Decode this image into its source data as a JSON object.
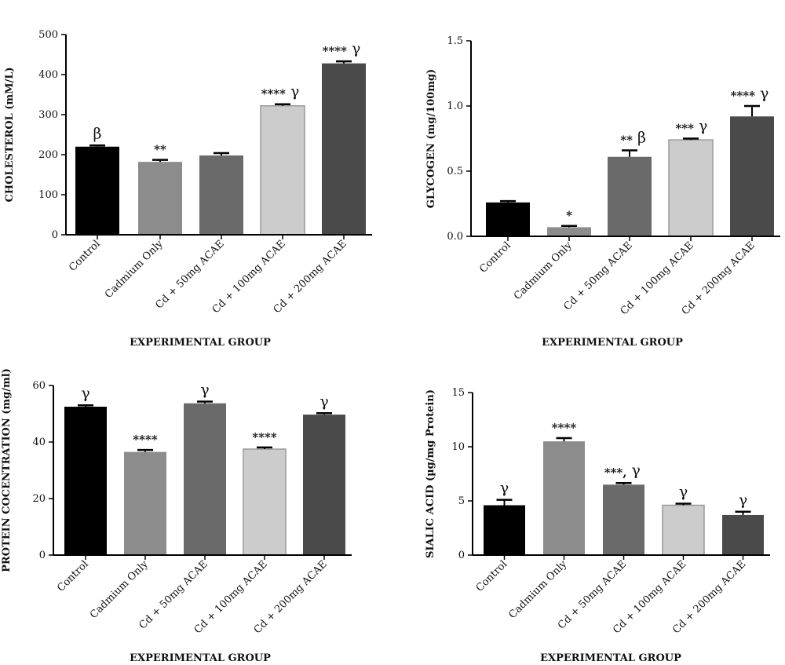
{
  "chart_data": [
    {
      "type": "bar",
      "ylabel": "CHOLESTEROL (mM/L)",
      "xlabel": "EXPERIMENTAL GROUP",
      "categories": [
        "Control",
        "Cadmium Only",
        "Cd + 50mg ACAE",
        "Cd + 100mg ACAE",
        "Cd + 200mg ACAE"
      ],
      "values": [
        220,
        182,
        198,
        322,
        428
      ],
      "errors": [
        3,
        5,
        6,
        4,
        5
      ],
      "ylim": [
        0,
        500
      ],
      "yticks": [
        "0",
        "100",
        "200",
        "300",
        "400",
        "500"
      ],
      "annotations": [
        {
          "stars": "",
          "greek": "β"
        },
        {
          "stars": "**",
          "greek": ""
        },
        {
          "stars": "",
          "greek": ""
        },
        {
          "stars": "****",
          "greek": "γ"
        },
        {
          "stars": "****",
          "greek": "γ"
        }
      ],
      "bar_colors": [
        "#000000",
        "#8c8c8c",
        "#6a6a6a",
        "#cccccc",
        "#4a4a4a"
      ]
    },
    {
      "type": "bar",
      "ylabel": "GLYCOGEN (mg/100mg)",
      "xlabel": "EXPERIMENTAL GROUP",
      "categories": [
        "Control",
        "Cadmium Only",
        "Cd + 50mg ACAE",
        "Cd + 100mg ACAE",
        "Cd + 200mg ACAE"
      ],
      "values": [
        0.26,
        0.07,
        0.61,
        0.74,
        0.92
      ],
      "errors": [
        0.01,
        0.01,
        0.05,
        0.01,
        0.08
      ],
      "ylim": [
        0,
        1.5
      ],
      "yticks": [
        "0.0",
        "0.5",
        "1.0",
        "1.5"
      ],
      "annotations": [
        {
          "stars": "",
          "greek": ""
        },
        {
          "stars": "*",
          "greek": ""
        },
        {
          "stars": "**",
          "greek": "β"
        },
        {
          "stars": "***",
          "greek": "γ"
        },
        {
          "stars": "****",
          "greek": "γ"
        }
      ],
      "bar_colors": [
        "#000000",
        "#8c8c8c",
        "#6a6a6a",
        "#cccccc",
        "#4a4a4a"
      ]
    },
    {
      "type": "bar",
      "ylabel": "PROTEIN COCENTRATION (mg/ml)",
      "xlabel": "EXPERIMENTAL GROUP",
      "categories": [
        "Control",
        "Cadmium Only",
        "Cd + 50mg ACAE",
        "Cd + 100mg ACAE",
        "Cd + 200mg ACAE"
      ],
      "values": [
        52.5,
        36.5,
        53.7,
        37.5,
        49.7
      ],
      "errors": [
        0.5,
        0.7,
        0.6,
        0.6,
        0.5
      ],
      "ylim": [
        0,
        60
      ],
      "yticks": [
        "0",
        "20",
        "40",
        "60"
      ],
      "annotations": [
        {
          "stars": "",
          "greek": "γ"
        },
        {
          "stars": "****",
          "greek": ""
        },
        {
          "stars": "",
          "greek": "γ"
        },
        {
          "stars": "****",
          "greek": ""
        },
        {
          "stars": "",
          "greek": "γ"
        }
      ],
      "bar_colors": [
        "#000000",
        "#8c8c8c",
        "#6a6a6a",
        "#cccccc",
        "#4a4a4a"
      ]
    },
    {
      "type": "bar",
      "ylabel": "SIALIC ACID (µg/mg Protein)",
      "xlabel": "EXPERIMENTAL GROUP",
      "categories": [
        "Control",
        "Cadmium Only",
        "Cd + 50mg ACAE",
        "Cd + 100mg ACAE",
        "Cd + 200mg ACAE"
      ],
      "values": [
        4.6,
        10.5,
        6.5,
        4.6,
        3.7
      ],
      "errors": [
        0.5,
        0.3,
        0.15,
        0.15,
        0.3
      ],
      "ylim": [
        0,
        15
      ],
      "yticks": [
        "0",
        "5",
        "10",
        "15"
      ],
      "annotations": [
        {
          "stars": "",
          "greek": "γ"
        },
        {
          "stars": "****",
          "greek": ""
        },
        {
          "stars": "***, ",
          "greek": "γ"
        },
        {
          "stars": "",
          "greek": "γ"
        },
        {
          "stars": "",
          "greek": "γ"
        }
      ],
      "bar_colors": [
        "#000000",
        "#8c8c8c",
        "#6a6a6a",
        "#cccccc",
        "#4a4a4a"
      ]
    }
  ]
}
